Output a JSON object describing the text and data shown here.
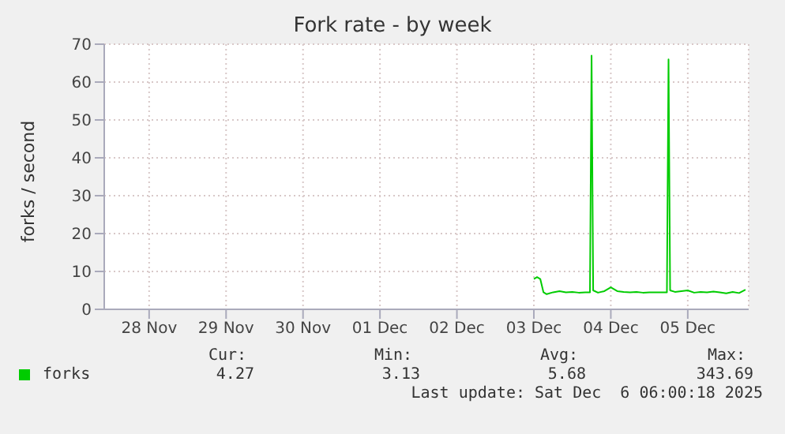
{
  "chart_data": {
    "type": "line",
    "title": "Fork rate - by week",
    "ylabel": "forks / second",
    "xlim": [
      "2025-11-27T22:00",
      "2025-12-06T07:00"
    ],
    "xticks": [
      {
        "value": "2025-11-28T12:00",
        "label": "28 Nov"
      },
      {
        "value": "2025-11-29T12:00",
        "label": "29 Nov"
      },
      {
        "value": "2025-11-30T12:00",
        "label": "30 Nov"
      },
      {
        "value": "2025-12-01T12:00",
        "label": "01 Dec"
      },
      {
        "value": "2025-12-02T12:00",
        "label": "02 Dec"
      },
      {
        "value": "2025-12-03T12:00",
        "label": "03 Dec"
      },
      {
        "value": "2025-12-04T12:00",
        "label": "04 Dec"
      },
      {
        "value": "2025-12-05T12:00",
        "label": "05 Dec"
      }
    ],
    "ylim": [
      0,
      70
    ],
    "yticks": [
      0,
      10,
      20,
      30,
      40,
      50,
      60,
      70
    ],
    "grid": true,
    "legend": "bottom left",
    "marker": "none",
    "line_style": "solid",
    "series": [
      {
        "name": "forks",
        "color": "#00cc00",
        "x": [
          "2025-12-03T12:00",
          "2025-12-03T13:00",
          "2025-12-03T14:00",
          "2025-12-03T15:00",
          "2025-12-03T16:00",
          "2025-12-03T18:00",
          "2025-12-03T20:00",
          "2025-12-03T22:00",
          "2025-12-04T00:00",
          "2025-12-04T02:00",
          "2025-12-04T04:00",
          "2025-12-04T05:30",
          "2025-12-04T06:00",
          "2025-12-04T06:30",
          "2025-12-04T08:00",
          "2025-12-04T10:00",
          "2025-12-04T12:00",
          "2025-12-04T14:00",
          "2025-12-04T16:00",
          "2025-12-04T18:00",
          "2025-12-04T20:00",
          "2025-12-04T22:00",
          "2025-12-05T00:00",
          "2025-12-05T02:00",
          "2025-12-05T04:00",
          "2025-12-05T05:30",
          "2025-12-05T06:00",
          "2025-12-05T06:30",
          "2025-12-05T08:00",
          "2025-12-05T10:00",
          "2025-12-05T12:00",
          "2025-12-05T14:00",
          "2025-12-05T16:00",
          "2025-12-05T18:00",
          "2025-12-05T20:00",
          "2025-12-05T22:00",
          "2025-12-06T00:00",
          "2025-12-06T02:00",
          "2025-12-06T04:00",
          "2025-12-06T06:00"
        ],
        "values": [
          8,
          8.5,
          8,
          4.5,
          4,
          4.5,
          4.8,
          4.5,
          4.6,
          4.4,
          4.5,
          4.5,
          67,
          5,
          4.4,
          4.8,
          5.8,
          4.8,
          4.6,
          4.5,
          4.6,
          4.4,
          4.5,
          4.5,
          4.5,
          4.5,
          66,
          5,
          4.6,
          4.8,
          5,
          4.4,
          4.6,
          4.5,
          4.7,
          4.5,
          4.2,
          4.6,
          4.3,
          5.2
        ]
      }
    ],
    "annotations": [
      "Cur:",
      "Min:",
      "Avg:",
      "Max:",
      "4.27",
      "3.13",
      "5.68",
      "343.69",
      "Last update: Sat Dec  6 06:00:18 2025"
    ]
  }
}
